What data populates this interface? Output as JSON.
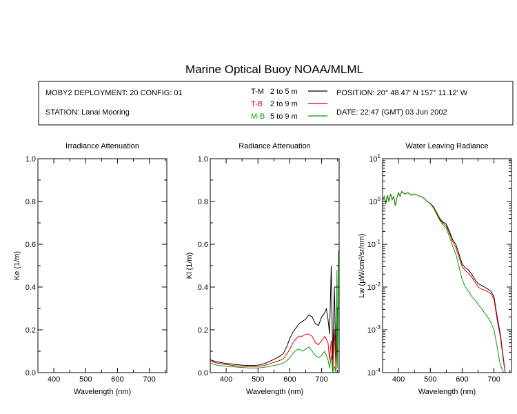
{
  "title": "Marine Optical Buoy NOAA/MLML",
  "info": {
    "deployment": "MOBY2 DEPLOYMENT: 20 CONFIG: 01",
    "station": "STATION: Lanai Mooring",
    "position": "POSITION: 20° 48.47' N   157° 11.12' W",
    "date": "DATE: 22:47 (GMT) 03 Jun 2002"
  },
  "legend": [
    {
      "name": "T-M",
      "range": "2 to 5  m",
      "color": "#000000"
    },
    {
      "name": "T-B",
      "range": "2 to 9  m",
      "color": "#dd0000"
    },
    {
      "name": "M-B",
      "range": "5 to 9  m",
      "color": "#00a000"
    }
  ],
  "chart_data": [
    {
      "type": "line",
      "title": "Irradiance Attenuation",
      "xlabel": "Wavelength (nm)",
      "ylabel": "Ke  (1/m)",
      "xlim": [
        350,
        755
      ],
      "ylim": [
        0,
        1
      ],
      "xticks": [
        400,
        500,
        600,
        700
      ],
      "yticks": [
        0,
        0.2,
        0.4,
        0.6,
        0.8,
        1
      ],
      "ytick_labels": [
        "0.0",
        "0.2",
        "0.4",
        "0.6",
        "0.8",
        "1.0"
      ],
      "series": []
    },
    {
      "type": "line",
      "title": "Radiance Attenuation",
      "xlabel": "Wavelength (nm)",
      "ylabel": "Kl  (1/m)",
      "xlim": [
        350,
        755
      ],
      "ylim": [
        0,
        1
      ],
      "xticks": [
        400,
        500,
        600,
        700
      ],
      "yticks": [
        0,
        0.2,
        0.4,
        0.6,
        0.8,
        1
      ],
      "ytick_labels": [
        "0.0",
        "0.2",
        "0.4",
        "0.6",
        "0.8",
        "1.0"
      ],
      "series": [
        {
          "name": "T-M",
          "color": "#000000",
          "x": [
            350,
            360,
            370,
            380,
            390,
            400,
            410,
            420,
            430,
            440,
            450,
            460,
            470,
            480,
            490,
            500,
            510,
            520,
            530,
            540,
            550,
            560,
            570,
            580,
            590,
            600,
            610,
            620,
            630,
            640,
            650,
            660,
            670,
            680,
            690,
            700,
            710,
            715,
            720,
            725,
            730,
            735,
            740,
            745,
            750
          ],
          "y": [
            0.06,
            0.055,
            0.05,
            0.048,
            0.045,
            0.043,
            0.042,
            0.04,
            0.038,
            0.036,
            0.035,
            0.034,
            0.034,
            0.034,
            0.034,
            0.035,
            0.038,
            0.042,
            0.048,
            0.055,
            0.062,
            0.07,
            0.078,
            0.09,
            0.12,
            0.16,
            0.19,
            0.21,
            0.23,
            0.24,
            0.25,
            0.27,
            0.26,
            0.23,
            0.22,
            0.26,
            0.28,
            0.3,
            0.25,
            0.18,
            0.5,
            0.06,
            0.4,
            0.02,
            0.3
          ]
        },
        {
          "name": "T-B",
          "color": "#dd0000",
          "x": [
            350,
            360,
            370,
            380,
            390,
            400,
            410,
            420,
            430,
            440,
            450,
            460,
            470,
            480,
            490,
            500,
            510,
            520,
            530,
            540,
            550,
            560,
            570,
            580,
            590,
            600,
            610,
            620,
            630,
            640,
            650,
            660,
            670,
            680,
            690,
            700,
            710,
            720,
            725,
            730,
            735,
            740,
            745,
            750
          ],
          "y": [
            0.055,
            0.05,
            0.045,
            0.042,
            0.04,
            0.038,
            0.036,
            0.034,
            0.032,
            0.03,
            0.03,
            0.029,
            0.028,
            0.028,
            0.028,
            0.029,
            0.031,
            0.034,
            0.038,
            0.043,
            0.048,
            0.053,
            0.058,
            0.065,
            0.085,
            0.11,
            0.14,
            0.16,
            0.17,
            0.17,
            0.18,
            0.18,
            0.17,
            0.14,
            0.13,
            0.15,
            0.17,
            0.14,
            0.06,
            0.15,
            0.01,
            0.2,
            0.0,
            0.18
          ]
        },
        {
          "name": "M-B",
          "color": "#00a000",
          "x": [
            350,
            360,
            370,
            380,
            390,
            400,
            410,
            420,
            430,
            440,
            450,
            460,
            470,
            480,
            490,
            500,
            510,
            520,
            530,
            540,
            550,
            560,
            570,
            580,
            590,
            600,
            610,
            620,
            630,
            640,
            650,
            660,
            670,
            680,
            690,
            700,
            710,
            720,
            725,
            730,
            735,
            740,
            745,
            748,
            750,
            753
          ],
          "y": [
            0.045,
            0.04,
            0.035,
            0.033,
            0.031,
            0.03,
            0.029,
            0.028,
            0.026,
            0.025,
            0.024,
            0.023,
            0.022,
            0.022,
            0.022,
            0.022,
            0.023,
            0.025,
            0.027,
            0.03,
            0.033,
            0.036,
            0.04,
            0.045,
            0.055,
            0.07,
            0.09,
            0.105,
            0.11,
            0.1,
            0.11,
            0.12,
            0.1,
            0.08,
            0.07,
            0.08,
            0.1,
            0.06,
            0.02,
            0.08,
            0.0,
            0.03,
            0.0,
            0.48,
            0.02,
            0.57
          ]
        }
      ]
    },
    {
      "type": "line",
      "title": "Water Leaving Radiance",
      "xlabel": "Wavelength (nm)",
      "ylabel": "Lw  (µW/cm²/sr/nm)",
      "yscale": "log",
      "xlim": [
        350,
        755
      ],
      "ylim": [
        0.0001,
        10
      ],
      "xticks": [
        400,
        500,
        600,
        700
      ],
      "yticks": [
        0.0001,
        0.001,
        0.01,
        0.1,
        1,
        10
      ],
      "ytick_exponents": [
        "-4",
        "-3",
        "-2",
        "-1",
        "0",
        "1"
      ],
      "series": [
        {
          "name": "T-M",
          "color": "#000000",
          "x": [
            350,
            355,
            360,
            365,
            370,
            375,
            380,
            385,
            390,
            395,
            400,
            405,
            410,
            420,
            430,
            440,
            450,
            460,
            470,
            480,
            490,
            500,
            510,
            520,
            530,
            540,
            550,
            560,
            570,
            580,
            590,
            600,
            610,
            620,
            630,
            640,
            650,
            660,
            670,
            680,
            690,
            700,
            710,
            720,
            730,
            735
          ],
          "y": [
            1.0,
            1.3,
            0.9,
            1.4,
            1.0,
            1.5,
            1.1,
            1.3,
            0.8,
            1.2,
            1.6,
            1.3,
            1.7,
            1.5,
            1.6,
            1.4,
            1.5,
            1.4,
            1.3,
            1.2,
            1.0,
            0.9,
            0.75,
            0.55,
            0.4,
            0.33,
            0.3,
            0.2,
            0.13,
            0.1,
            0.06,
            0.035,
            0.028,
            0.025,
            0.02,
            0.015,
            0.012,
            0.011,
            0.01,
            0.009,
            0.008,
            0.006,
            0.002,
            0.0008,
            0.0002,
            0.0001
          ]
        },
        {
          "name": "T-B",
          "color": "#dd0000",
          "x": [
            350,
            355,
            360,
            365,
            370,
            375,
            380,
            385,
            390,
            395,
            400,
            405,
            410,
            420,
            430,
            440,
            450,
            460,
            470,
            480,
            490,
            500,
            510,
            520,
            530,
            540,
            550,
            560,
            570,
            580,
            590,
            600,
            610,
            620,
            630,
            640,
            650,
            660,
            670,
            680,
            690,
            700,
            710,
            720,
            730,
            735
          ],
          "y": [
            1.0,
            1.3,
            0.9,
            1.4,
            1.0,
            1.5,
            1.1,
            1.3,
            0.8,
            1.2,
            1.6,
            1.3,
            1.7,
            1.5,
            1.6,
            1.4,
            1.5,
            1.4,
            1.3,
            1.2,
            1.0,
            0.9,
            0.72,
            0.52,
            0.38,
            0.31,
            0.27,
            0.18,
            0.115,
            0.085,
            0.05,
            0.03,
            0.024,
            0.021,
            0.017,
            0.013,
            0.01,
            0.009,
            0.0085,
            0.0078,
            0.007,
            0.0052,
            0.0017,
            0.0007,
            0.00018,
            0.0001
          ]
        },
        {
          "name": "M-B",
          "color": "#00a000",
          "x": [
            350,
            355,
            360,
            365,
            370,
            375,
            380,
            385,
            390,
            395,
            400,
            405,
            410,
            420,
            430,
            440,
            450,
            460,
            470,
            480,
            490,
            500,
            510,
            520,
            530,
            540,
            550,
            560,
            570,
            580,
            590,
            600,
            610,
            620,
            630,
            640,
            650,
            660,
            670,
            680,
            690,
            700,
            710,
            720,
            730
          ],
          "y": [
            1.0,
            1.3,
            0.9,
            1.4,
            1.0,
            1.5,
            1.1,
            1.3,
            0.8,
            1.2,
            1.6,
            1.3,
            1.7,
            1.5,
            1.6,
            1.4,
            1.5,
            1.4,
            1.3,
            1.2,
            1.0,
            0.88,
            0.7,
            0.5,
            0.36,
            0.28,
            0.24,
            0.15,
            0.09,
            0.06,
            0.03,
            0.015,
            0.01,
            0.008,
            0.006,
            0.005,
            0.004,
            0.0032,
            0.0025,
            0.002,
            0.0015,
            0.001,
            0.0004,
            0.00015,
            0.0001
          ]
        }
      ]
    }
  ]
}
